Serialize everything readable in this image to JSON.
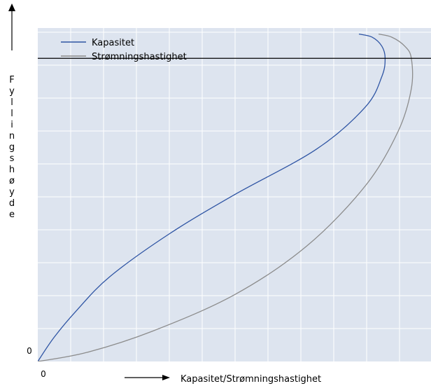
{
  "chart_data": {
    "type": "line",
    "x_axis_label": "Kapasitet/Strømningshastighet",
    "y_axis_label": "Fyllingshøyde",
    "x_tick_labels": [
      "0"
    ],
    "y_tick_labels": [
      "0"
    ],
    "grid": true,
    "legend_position": "top-left",
    "plot_background": "#dde4ef",
    "grid_color": "#ffffff",
    "reference_line": {
      "y": 1.0,
      "color": "#000000"
    },
    "xlim": [
      0,
      1.2
    ],
    "ylim": [
      0,
      1.1
    ],
    "series": [
      {
        "name": "Kapasitet",
        "color": "#2f55a4",
        "x": [
          0,
          0.05,
          0.12,
          0.22,
          0.4,
          0.6,
          0.85,
          1.0,
          1.05,
          1.06,
          1.05,
          1.02,
          0.98
        ],
        "y": [
          0,
          0.08,
          0.17,
          0.28,
          0.42,
          0.55,
          0.7,
          0.84,
          0.94,
          1.0,
          1.04,
          1.07,
          1.08
        ]
      },
      {
        "name": "Strømningshastighet",
        "color": "#8c8c8c",
        "x": [
          0,
          0.15,
          0.35,
          0.6,
          0.82,
          1.0,
          1.1,
          1.14,
          1.14,
          1.12,
          1.08,
          1.04
        ],
        "y": [
          0,
          0.03,
          0.1,
          0.22,
          0.38,
          0.58,
          0.76,
          0.9,
          1.0,
          1.04,
          1.07,
          1.08
        ]
      }
    ]
  }
}
